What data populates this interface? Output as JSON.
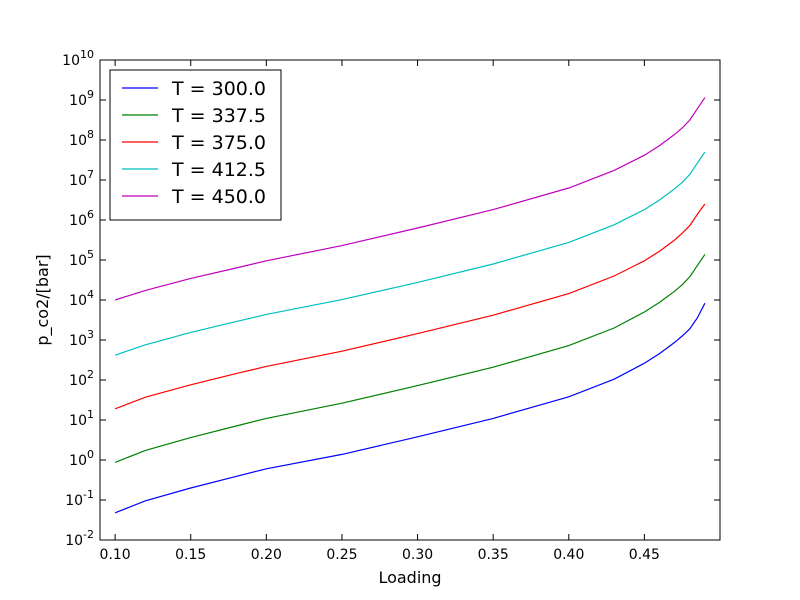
{
  "chart_data": {
    "type": "line",
    "xlabel": "Loading",
    "ylabel": "p_co2/[bar]",
    "xlim": [
      0.09,
      0.5
    ],
    "ylim_exponent": [
      -2,
      10
    ],
    "y_scale": "log",
    "grid": false,
    "legend_placement": "top-left",
    "x_ticks": [
      0.1,
      0.15,
      0.2,
      0.25,
      0.3,
      0.35,
      0.4,
      0.45
    ],
    "x_tick_labels": [
      "0.10",
      "0.15",
      "0.20",
      "0.25",
      "0.30",
      "0.35",
      "0.40",
      "0.45"
    ],
    "y_tick_exponents": [
      -2,
      -1,
      0,
      1,
      2,
      3,
      4,
      5,
      6,
      7,
      8,
      9,
      10
    ],
    "y_tick_base": "10",
    "x": [
      0.1,
      0.12,
      0.15,
      0.18,
      0.2,
      0.25,
      0.3,
      0.35,
      0.4,
      0.43,
      0.45,
      0.46,
      0.47,
      0.475,
      0.48,
      0.485,
      0.49
    ],
    "series": [
      {
        "name": "T = 300.0",
        "color": "#0000ff",
        "log10_values": [
          -1.32,
          -1.02,
          -0.7,
          -0.41,
          -0.22,
          0.14,
          0.58,
          1.04,
          1.58,
          2.02,
          2.42,
          2.66,
          2.94,
          3.1,
          3.28,
          3.55,
          3.92
        ]
      },
      {
        "name": "T = 337.5",
        "color": "#008000",
        "log10_values": [
          -0.06,
          0.24,
          0.56,
          0.85,
          1.04,
          1.42,
          1.86,
          2.32,
          2.86,
          3.3,
          3.7,
          3.94,
          4.22,
          4.38,
          4.58,
          4.86,
          5.14
        ]
      },
      {
        "name": "T = 375.0",
        "color": "#ff0000",
        "log10_values": [
          1.28,
          1.57,
          1.88,
          2.16,
          2.34,
          2.72,
          3.16,
          3.62,
          4.16,
          4.6,
          4.98,
          5.22,
          5.5,
          5.67,
          5.86,
          6.14,
          6.4
        ]
      },
      {
        "name": "T = 412.5",
        "color": "#00bfbf",
        "log10_values": [
          2.62,
          2.88,
          3.19,
          3.46,
          3.64,
          4.01,
          4.44,
          4.9,
          5.44,
          5.88,
          6.26,
          6.5,
          6.78,
          6.94,
          7.14,
          7.42,
          7.7
        ]
      },
      {
        "name": "T = 450.0",
        "color": "#bf00bf",
        "log10_values": [
          4.0,
          4.24,
          4.54,
          4.8,
          4.98,
          5.36,
          5.8,
          6.26,
          6.8,
          7.24,
          7.62,
          7.86,
          8.14,
          8.3,
          8.5,
          8.78,
          9.06
        ]
      }
    ]
  }
}
